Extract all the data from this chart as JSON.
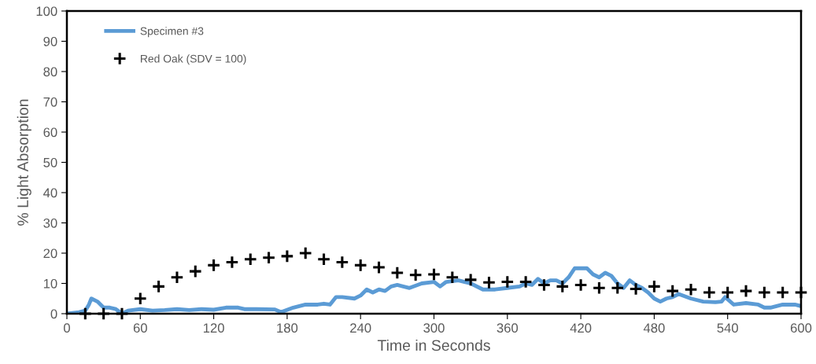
{
  "chart_data": {
    "type": "line",
    "xlabel": "Time in Seconds",
    "ylabel": "% Light Absorption",
    "xlim": [
      0,
      600
    ],
    "xticks": [
      0,
      60,
      120,
      180,
      240,
      300,
      360,
      420,
      480,
      540,
      600
    ],
    "ylim": [
      0,
      100
    ],
    "yticks": [
      0,
      10,
      20,
      30,
      40,
      50,
      60,
      70,
      80,
      90,
      100
    ],
    "grid": false,
    "legend": "top left",
    "series": [
      {
        "name": "Specimen #3",
        "color": "#5b9bd5",
        "line_style": "solid",
        "marker": "none",
        "x": [
          0,
          10,
          15,
          18,
          20,
          25,
          30,
          35,
          40,
          45,
          50,
          60,
          70,
          80,
          90,
          100,
          110,
          120,
          130,
          140,
          145,
          155,
          170,
          175,
          185,
          195,
          205,
          210,
          215,
          220,
          225,
          235,
          240,
          245,
          250,
          255,
          260,
          265,
          270,
          280,
          290,
          300,
          305,
          310,
          320,
          325,
          330,
          340,
          350,
          360,
          370,
          375,
          380,
          385,
          390,
          395,
          400,
          405,
          410,
          415,
          420,
          425,
          430,
          435,
          440,
          445,
          450,
          455,
          460,
          465,
          470,
          475,
          480,
          485,
          490,
          495,
          500,
          510,
          520,
          530,
          535,
          538,
          545,
          555,
          565,
          570,
          575,
          585,
          595,
          600
        ],
        "values": [
          0,
          0.5,
          1,
          3,
          5,
          4,
          2,
          2,
          1.5,
          0,
          1,
          1.5,
          1,
          1.2,
          1.5,
          1.2,
          1.5,
          1.3,
          2,
          2,
          1.5,
          1.5,
          1.4,
          0.5,
          2,
          3,
          3,
          3.3,
          3,
          5.5,
          5.5,
          5,
          6,
          8,
          7,
          8,
          7.5,
          9,
          9.5,
          8.5,
          10,
          10.5,
          9,
          10.5,
          11,
          10.5,
          10,
          8,
          8,
          8.5,
          9,
          10,
          9.5,
          11.5,
          10,
          11,
          11,
          10,
          12,
          15,
          15,
          15,
          13,
          12,
          13.5,
          12.5,
          10,
          8.5,
          11,
          9.5,
          8.5,
          7,
          5,
          4,
          5,
          5.5,
          6.5,
          5,
          4,
          3.8,
          4,
          5.5,
          3,
          3.5,
          3,
          2,
          2,
          3,
          3,
          2.5
        ]
      },
      {
        "name": "Red Oak (SDV = 100)",
        "type": "scatter",
        "color": "#000000",
        "marker": "cross",
        "x": [
          15,
          30,
          45,
          60,
          75,
          90,
          105,
          120,
          135,
          150,
          165,
          180,
          195,
          210,
          225,
          240,
          255,
          270,
          285,
          300,
          315,
          330,
          345,
          360,
          375,
          390,
          405,
          420,
          435,
          450,
          465,
          480,
          495,
          510,
          525,
          540,
          555,
          570,
          585,
          600
        ],
        "values": [
          0,
          0,
          0,
          5,
          9,
          12,
          14,
          16,
          17,
          18,
          18.5,
          19,
          20,
          18,
          17,
          16,
          15.3,
          13.5,
          12.8,
          13,
          12,
          11.2,
          10.3,
          10.5,
          10.5,
          9.5,
          9,
          9.5,
          8.5,
          8.5,
          8.2,
          9,
          7.5,
          8,
          7,
          7,
          7.5,
          7,
          7,
          7
        ]
      }
    ]
  }
}
